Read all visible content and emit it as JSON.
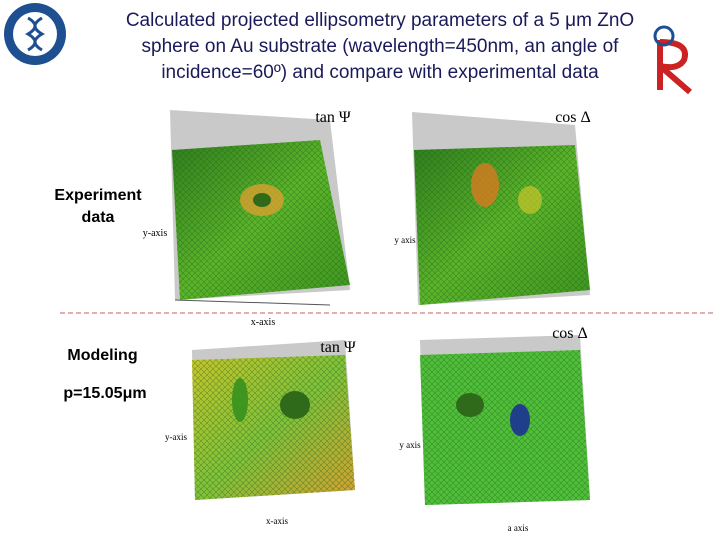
{
  "title_lines": [
    "Calculated projected ellipsometry parameters of a 5 μm ZnO",
    "sphere on Au substrate (wavelength=450nm, an angle of",
    "incidence=60º) and compare with experimental data"
  ],
  "row_labels": {
    "experiment": "Experiment data",
    "modeling": "Modeling",
    "period": "p=15.05μm"
  },
  "panels": [
    {
      "quantity": "tan Ψ",
      "y_axis": "y-axis",
      "x_axis": "x-axis"
    },
    {
      "quantity": "cos Δ",
      "y_axis": "y axis"
    },
    {
      "quantity": "tan Ψ",
      "y_axis": "y-axis",
      "x_axis": "x-axis"
    },
    {
      "quantity": "cos Δ",
      "y_axis": "y axis",
      "x_axis": "a axis"
    }
  ]
}
